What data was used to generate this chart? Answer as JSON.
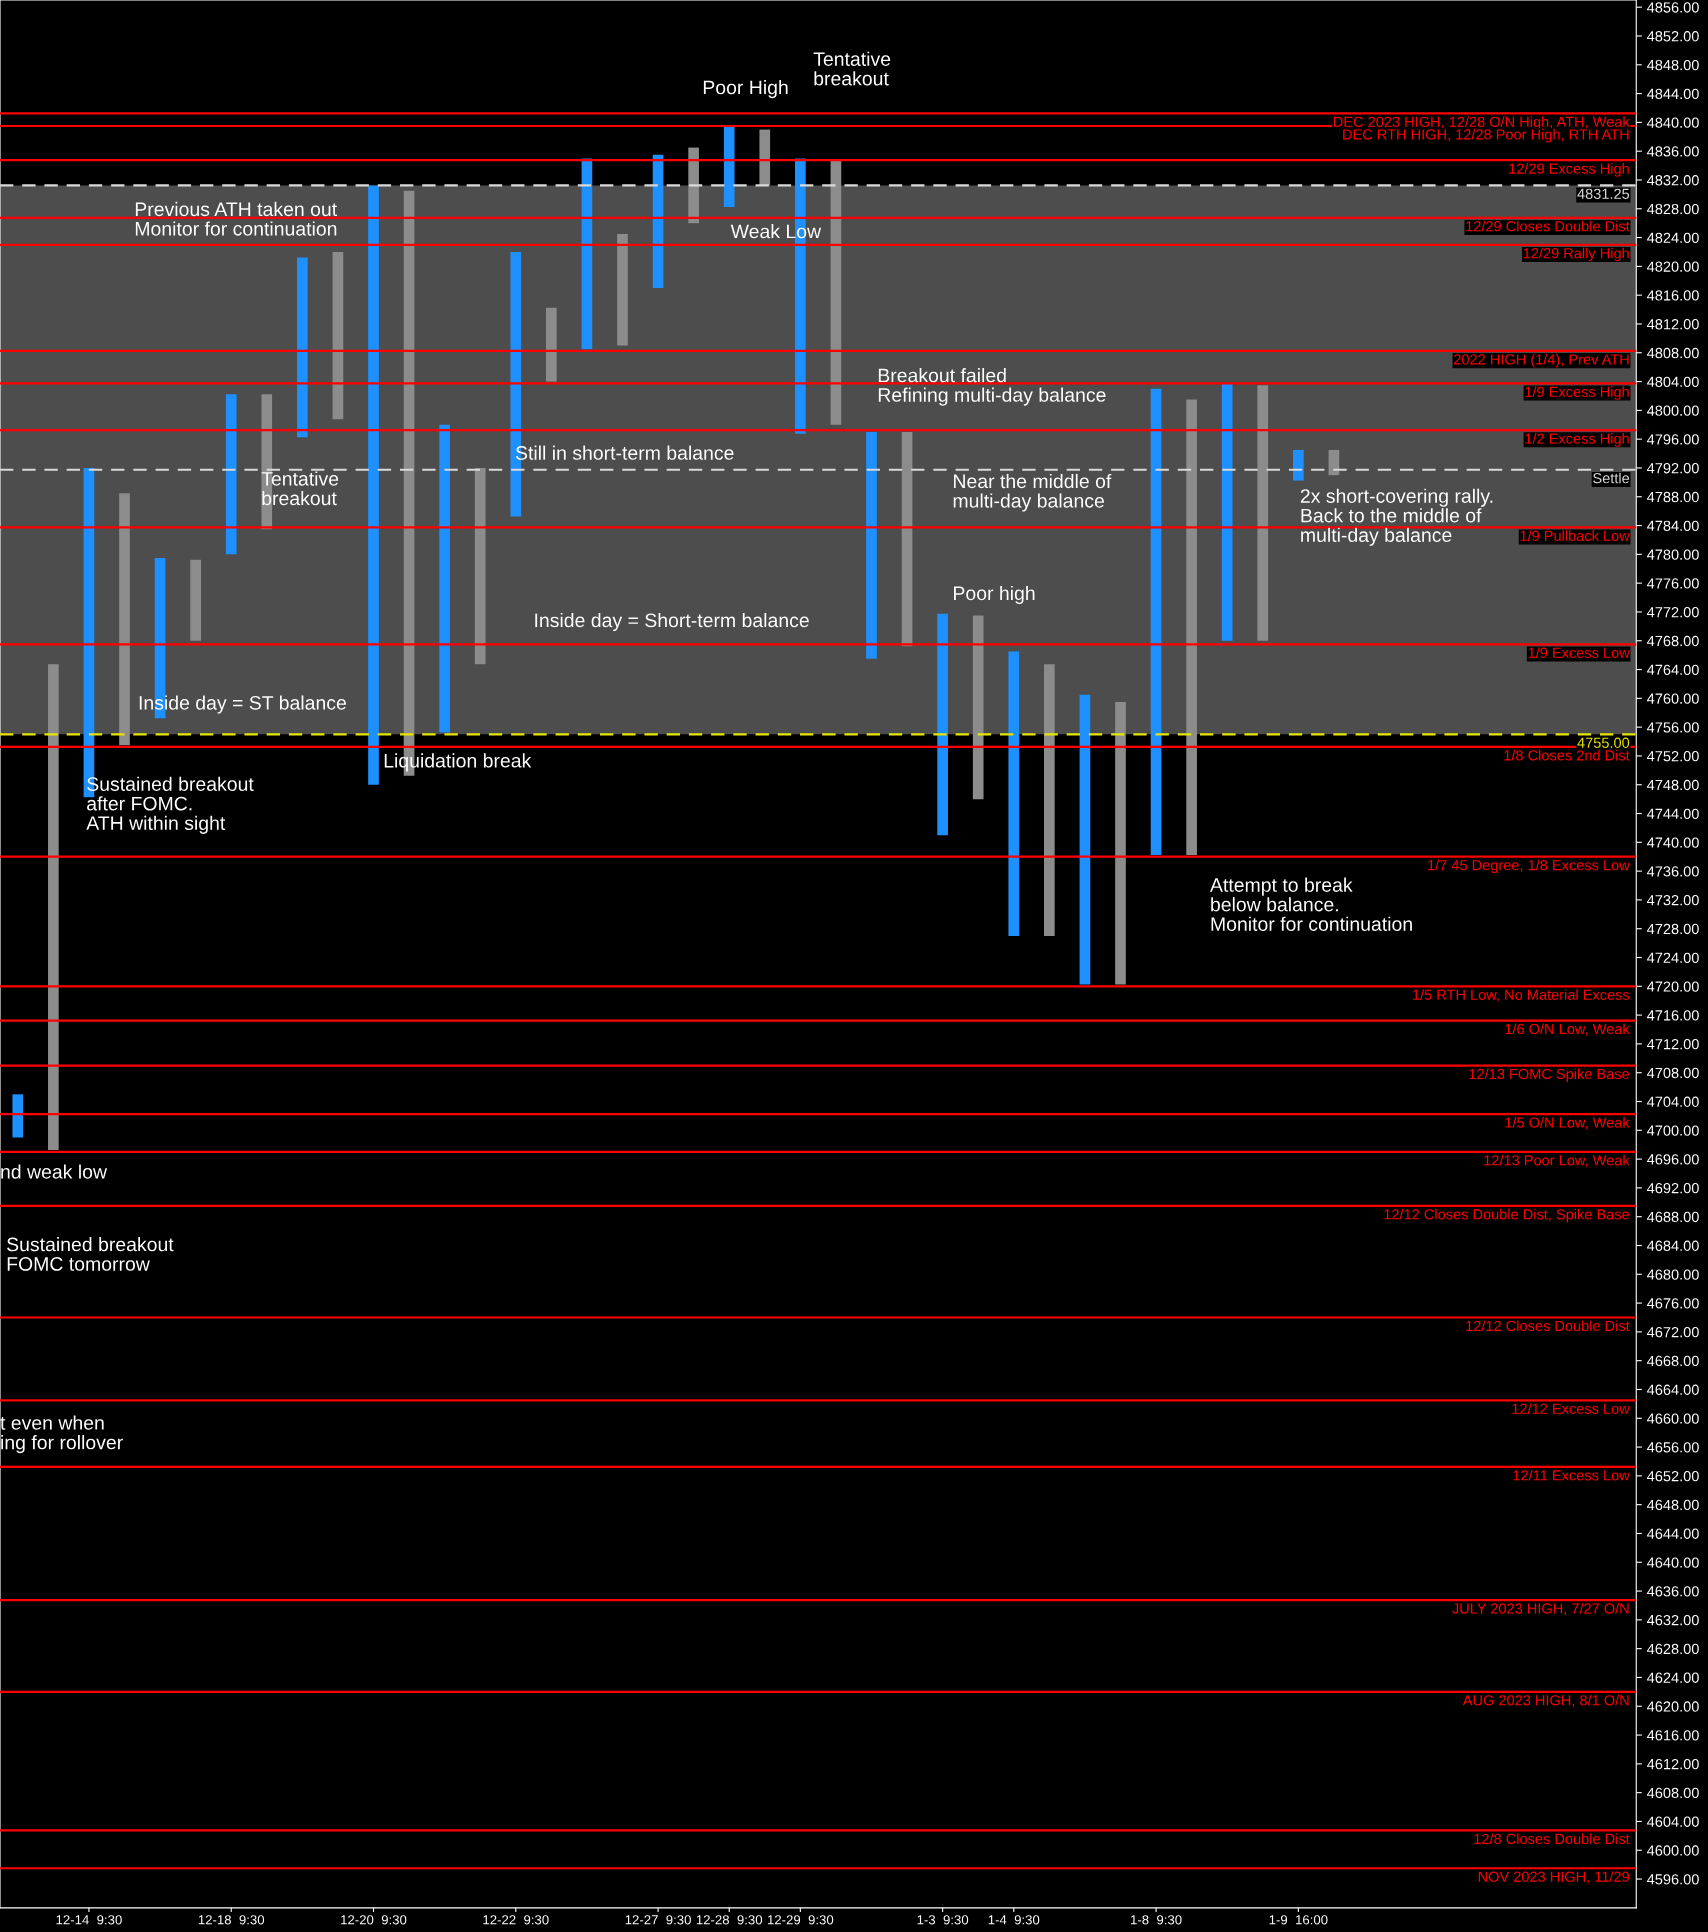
{
  "chart_data": {
    "type": "bar",
    "categories": [
      null,
      null,
      "12-14  9:30",
      null,
      null,
      null,
      "12-18  9:30",
      null,
      null,
      null,
      "12-20  9:30",
      null,
      null,
      null,
      "12-22  9:30",
      null,
      null,
      null,
      "12-27  9:30",
      null,
      "12-28  9:30",
      null,
      "12-29  9:30",
      null,
      null,
      null,
      "1-3  9:30",
      null,
      "1-4  9:30",
      null,
      null,
      null,
      "1-8  9:30",
      null,
      null,
      null,
      "1-9  16:00",
      null,
      null,
      null,
      null,
      null,
      null,
      null,
      null,
      null
    ],
    "base": [
      4699,
      4697.25,
      4746.25,
      4753.5,
      4757.25,
      4768,
      4780,
      4783.5,
      4796.25,
      4798.75,
      4748,
      4749.25,
      4755.25,
      4764.75,
      4785.25,
      4804,
      4808.5,
      4809,
      4817,
      4826,
      4828.25,
      4831.25,
      4796.75,
      4798,
      4765.5,
      4767.25,
      4741,
      4746,
      4727,
      4727,
      4720.25,
      4720.25,
      4738.25,
      4738.25,
      4768,
      4768,
      4790.25,
      4791,
      null,
      null,
      null,
      null,
      null,
      null,
      null,
      null
    ],
    "values": [
      6,
      67.5,
      45.75,
      35,
      22.25,
      11.25,
      22.25,
      18.75,
      25,
      23.25,
      83.25,
      81.25,
      42.75,
      27.25,
      36.75,
      10.25,
      26.5,
      15.5,
      18.5,
      10.5,
      11.25,
      7.75,
      38.25,
      36.75,
      31.5,
      29.75,
      30.75,
      25.5,
      39.5,
      37.75,
      40.25,
      39.25,
      64.75,
      63.25,
      35.75,
      35.5,
      4.25,
      3.5,
      null,
      null,
      null,
      null,
      null,
      null,
      null,
      null
    ],
    "colors": [
      "#1e90ff",
      "#8c8c8c",
      "#1e90ff",
      "#8c8c8c",
      "#1e90ff",
      "#8c8c8c",
      "#1e90ff",
      "#8c8c8c",
      "#1e90ff",
      "#8c8c8c",
      "#1e90ff",
      "#8c8c8c",
      "#1e90ff",
      "#8c8c8c",
      "#1e90ff",
      "#8c8c8c",
      "#1e90ff",
      "#8c8c8c",
      "#1e90ff",
      "#8c8c8c",
      "#1e90ff",
      "#8c8c8c",
      "#1e90ff",
      "#8c8c8c",
      "#1e90ff",
      "#8c8c8c",
      "#1e90ff",
      "#8c8c8c",
      "#1e90ff",
      "#8c8c8c",
      "#1e90ff",
      "#8c8c8c",
      "#1e90ff",
      "#8c8c8c",
      "#1e90ff",
      "#8c8c8c",
      "#1e90ff",
      "#8c8c8c",
      "#1e90ff",
      "#8c8c8c",
      "#1e90ff",
      "#8c8c8c",
      "#1e90ff",
      "#8c8c8c",
      "#1e90ff",
      "#8c8c8c"
    ],
    "ylim": [
      4592,
      4857
    ],
    "yticks": [
      {
        "value": 4596,
        "label": "4596.00"
      },
      {
        "value": 4600,
        "label": "4600.00"
      },
      {
        "value": 4604,
        "label": "4604.00"
      },
      {
        "value": 4608,
        "label": "4608.00"
      },
      {
        "value": 4612,
        "label": "4612.00"
      },
      {
        "value": 4616,
        "label": "4616.00"
      },
      {
        "value": 4620,
        "label": "4620.00"
      },
      {
        "value": 4624,
        "label": "4624.00"
      },
      {
        "value": 4628,
        "label": "4628.00"
      },
      {
        "value": 4632,
        "label": "4632.00"
      },
      {
        "value": 4636,
        "label": "4636.00"
      },
      {
        "value": 4640,
        "label": "4640.00"
      },
      {
        "value": 4644,
        "label": "4644.00"
      },
      {
        "value": 4648,
        "label": "4648.00"
      },
      {
        "value": 4652,
        "label": "4652.00"
      },
      {
        "value": 4656,
        "label": "4656.00"
      },
      {
        "value": 4660,
        "label": "4660.00"
      },
      {
        "value": 4664,
        "label": "4664.00"
      },
      {
        "value": 4668,
        "label": "4668.00"
      },
      {
        "value": 4672,
        "label": "4672.00"
      },
      {
        "value": 4676,
        "label": "4676.00"
      },
      {
        "value": 4680,
        "label": "4680.00"
      },
      {
        "value": 4684,
        "label": "4684.00"
      },
      {
        "value": 4688,
        "label": "4688.00"
      },
      {
        "value": 4692,
        "label": "4692.00"
      },
      {
        "value": 4696,
        "label": "4696.00"
      },
      {
        "value": 4700,
        "label": "4700.00"
      },
      {
        "value": 4704,
        "label": "4704.00"
      },
      {
        "value": 4708,
        "label": "4708.00"
      },
      {
        "value": 4712,
        "label": "4712.00"
      },
      {
        "value": 4716,
        "label": "4716.00"
      },
      {
        "value": 4720,
        "label": "4720.00"
      },
      {
        "value": 4724,
        "label": "4724.00"
      },
      {
        "value": 4728,
        "label": "4728.00"
      },
      {
        "value": 4732,
        "label": "4732.00"
      },
      {
        "value": 4736,
        "label": "4736.00"
      },
      {
        "value": 4740,
        "label": "4740.00"
      },
      {
        "value": 4744,
        "label": "4744.00"
      },
      {
        "value": 4748,
        "label": "4748.00"
      },
      {
        "value": 4752,
        "label": "4752.00"
      },
      {
        "value": 4756,
        "label": "4756.00"
      },
      {
        "value": 4760,
        "label": "4760.00"
      },
      {
        "value": 4764,
        "label": "4764.00"
      },
      {
        "value": 4768,
        "label": "4768.00"
      },
      {
        "value": 4772,
        "label": "4772.00"
      },
      {
        "value": 4776,
        "label": "4776.00"
      },
      {
        "value": 4780,
        "label": "4780.00"
      },
      {
        "value": 4784,
        "label": "4784.00"
      },
      {
        "value": 4788,
        "label": "4788.00"
      },
      {
        "value": 4792,
        "label": "4792.00"
      },
      {
        "value": 4796,
        "label": "4796.00"
      },
      {
        "value": 4800,
        "label": "4800.00"
      },
      {
        "value": 4804,
        "label": "4804.00"
      },
      {
        "value": 4808,
        "label": "4808.00"
      },
      {
        "value": 4812,
        "label": "4812.00"
      },
      {
        "value": 4816,
        "label": "4816.00"
      },
      {
        "value": 4820,
        "label": "4820.00"
      },
      {
        "value": 4824,
        "label": "4824.00"
      },
      {
        "value": 4828,
        "label": "4828.00"
      },
      {
        "value": 4832,
        "label": "4832.00"
      },
      {
        "value": 4836,
        "label": "4836.00"
      },
      {
        "value": 4840,
        "label": "4840.00"
      },
      {
        "value": 4844,
        "label": "4844.00"
      },
      {
        "value": 4848,
        "label": "4848.00"
      },
      {
        "value": 4852,
        "label": "4852.00"
      },
      {
        "value": 4856,
        "label": "4856.00"
      }
    ],
    "bands": [
      {
        "axis": "y",
        "from": 4755,
        "to": 4831.25,
        "color": "#4d4d4d"
      }
    ],
    "ref_lines": [
      {
        "axis": "y",
        "value": 4841.25,
        "label": "DEC 2023 HIGH, 12/28 O/N High, ATH, Weak",
        "color": "#ff0000"
      },
      {
        "axis": "y",
        "value": 4839.5,
        "label": "DEC RTH HIGH, 12/28 Poor High, RTH ATH",
        "color": "#ff0000"
      },
      {
        "axis": "y",
        "value": 4834.75,
        "label": "12/29 Excess High",
        "color": "#ff0000"
      },
      {
        "axis": "y",
        "value": 4831.25,
        "label": "4831.25",
        "color": "#d9d9d9",
        "line_style": "dashed"
      },
      {
        "axis": "y",
        "value": 4826.75,
        "label": "12/29 Closes Double Dist",
        "color": "#ff0000"
      },
      {
        "axis": "y",
        "value": 4823,
        "label": "12/29 Rally High",
        "color": "#ff0000"
      },
      {
        "axis": "y",
        "value": 4808.25,
        "label": "2022 HIGH (1/4), Prev ATH",
        "color": "#ff0000"
      },
      {
        "axis": "y",
        "value": 4803.75,
        "label": "1/9 Excess High",
        "color": "#ff0000"
      },
      {
        "axis": "y",
        "value": 4797.25,
        "label": "1/2 Excess High",
        "color": "#ff0000"
      },
      {
        "axis": "y",
        "value": 4791.75,
        "label": "Settle",
        "color": "#d9d9d9",
        "line_style": "dashed"
      },
      {
        "axis": "y",
        "value": 4783.75,
        "label": "1/9 Pullback Low",
        "color": "#ff0000"
      },
      {
        "axis": "y",
        "value": 4767.5,
        "label": "1/9 Excess Low",
        "color": "#ff0000"
      },
      {
        "axis": "y",
        "value": 4755,
        "label": "4755.00",
        "color": "#e6e600",
        "line_style": "dashed"
      },
      {
        "axis": "y",
        "value": 4753.25,
        "label": "1/8 Closes 2nd Dist",
        "color": "#ff0000"
      },
      {
        "axis": "y",
        "value": 4738,
        "label": "1/7 45 Degree, 1/8 Excess Low",
        "color": "#ff0000"
      },
      {
        "axis": "y",
        "value": 4720,
        "label": "1/5 RTH Low, No Material Excess",
        "color": "#ff0000"
      },
      {
        "axis": "y",
        "value": 4715.25,
        "label": "1/6 O/N Low, Weak",
        "color": "#ff0000"
      },
      {
        "axis": "y",
        "value": 4709,
        "label": "12/13 FOMC Spike Base",
        "color": "#ff0000"
      },
      {
        "axis": "y",
        "value": 4702.25,
        "label": "1/5 O/N Low, Weak",
        "color": "#ff0000"
      },
      {
        "axis": "y",
        "value": 4697,
        "label": "12/13 Poor Low, Weak",
        "color": "#ff0000"
      },
      {
        "axis": "y",
        "value": 4689.5,
        "label": "12/12 Closes Double Dist, Spike Base",
        "color": "#ff0000"
      },
      {
        "axis": "y",
        "value": 4674,
        "label": "12/12 Closes Double Dist",
        "color": "#ff0000"
      },
      {
        "axis": "y",
        "value": 4662.5,
        "label": "12/12 Excess Low",
        "color": "#ff0000"
      },
      {
        "axis": "y",
        "value": 4653.25,
        "label": "12/11 Excess Low",
        "color": "#ff0000"
      },
      {
        "axis": "y",
        "value": 4634.75,
        "label": "JULY 2023 HIGH, 7/27 O/N",
        "color": "#ff0000"
      },
      {
        "axis": "y",
        "value": 4622,
        "label": "AUG 2023 HIGH, 8/1 O/N",
        "color": "#ff0000"
      },
      {
        "axis": "y",
        "value": 4602.75,
        "label": "12/8 Closes Double Dist",
        "color": "#ff0000"
      },
      {
        "axis": "y",
        "value": 4597.5,
        "label": "NOV 2023 HIGH, 11/29",
        "color": "#ff0000"
      }
    ],
    "annotations": [
      "Poor High",
      "Tentative\nbreakout",
      "Previous ATH taken out\nMonitor for continuation",
      "Weak Low",
      "Breakout failed\nRefining multi-day balance",
      "Still in short-term balance",
      "Tentative\nbreakout",
      "Near the middle of\nmulti-day balance",
      "2x short-covering rally.\nBack to the middle of\nmulti-day balance",
      "Inside day = Short-term balance",
      "Poor high",
      "Inside day = ST balance",
      "Liquidation break",
      "Sustained breakout\nafter FOMC.\nATH within sight",
      "Attempt to break\nbelow balance.\nMonitor for continuation",
      "nd weak low",
      "Sustained breakout\nFOMC tomorrow",
      "t even when\ning for rollover"
    ],
    "grid": false,
    "legend": false
  }
}
